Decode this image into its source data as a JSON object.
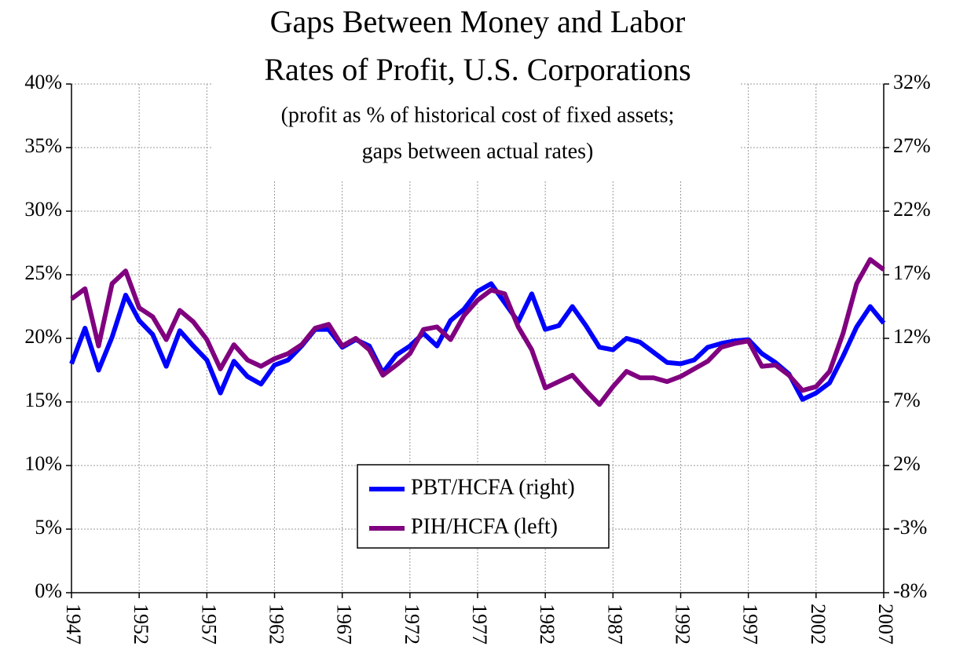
{
  "chart_data": {
    "type": "line",
    "title": [
      "Gaps Between Money and Labor",
      "Rates of Profit,  U.S. Corporations"
    ],
    "subtitle": [
      "(profit as % of historical cost of fixed assets;",
      "gaps between actual rates)"
    ],
    "x": [
      1947,
      1948,
      1949,
      1950,
      1951,
      1952,
      1953,
      1954,
      1955,
      1956,
      1957,
      1958,
      1959,
      1960,
      1961,
      1962,
      1963,
      1964,
      1965,
      1966,
      1967,
      1968,
      1969,
      1970,
      1971,
      1972,
      1973,
      1974,
      1975,
      1976,
      1977,
      1978,
      1979,
      1980,
      1981,
      1982,
      1983,
      1984,
      1985,
      1986,
      1987,
      1988,
      1989,
      1990,
      1991,
      1992,
      1993,
      1994,
      1995,
      1996,
      1997,
      1998,
      1999,
      2000,
      2001,
      2002,
      2003,
      2004,
      2005,
      2006,
      2007
    ],
    "series": [
      {
        "name": "PBT/HCFA (right)",
        "color": "#0000ff",
        "axis": "y2",
        "values": [
          10.0,
          12.8,
          9.5,
          12.1,
          15.4,
          13.4,
          12.3,
          9.8,
          12.6,
          11.4,
          10.3,
          7.7,
          10.2,
          9.0,
          8.4,
          9.9,
          10.3,
          11.4,
          12.7,
          12.7,
          11.3,
          11.9,
          11.4,
          9.3,
          10.7,
          11.4,
          12.4,
          11.4,
          13.4,
          14.3,
          15.7,
          16.3,
          14.8,
          13.3,
          15.5,
          12.7,
          13.0,
          14.5,
          13.0,
          11.3,
          11.1,
          12.0,
          11.7,
          10.9,
          10.1,
          10.0,
          10.3,
          11.3,
          11.6,
          11.8,
          11.9,
          10.8,
          10.1,
          9.2,
          7.2,
          7.7,
          8.5,
          10.6,
          12.9,
          14.5,
          13.2
        ]
      },
      {
        "name": "PIH/HCFA (left)",
        "color": "#800080",
        "values": [
          23.1,
          23.9,
          19.4,
          24.3,
          25.3,
          22.4,
          21.7,
          19.9,
          22.2,
          21.3,
          19.9,
          17.6,
          19.5,
          18.3,
          17.8,
          18.4,
          18.8,
          19.5,
          20.8,
          21.1,
          19.4,
          20.0,
          19.1,
          17.1,
          17.9,
          18.8,
          20.7,
          20.9,
          19.9,
          21.8,
          23.0,
          23.8,
          23.5,
          20.9,
          19.1,
          16.1,
          16.6,
          17.1,
          15.9,
          14.8,
          16.2,
          17.4,
          16.9,
          16.9,
          16.6,
          17.0,
          17.6,
          18.2,
          19.3,
          19.6,
          19.8,
          17.8,
          17.9,
          17.1,
          15.9,
          16.2,
          17.4,
          20.4,
          24.3,
          26.2,
          25.4
        ]
      }
    ],
    "xlim": [
      1947,
      2007
    ],
    "xticks": [
      1947,
      1952,
      1957,
      1962,
      1967,
      1972,
      1977,
      1982,
      1987,
      1992,
      1997,
      2002,
      2007
    ],
    "ylim": [
      0,
      40
    ],
    "yticks": [
      {
        "value": 0,
        "label": "0%"
      },
      {
        "value": 5,
        "label": "5%"
      },
      {
        "value": 10,
        "label": "10%"
      },
      {
        "value": 15,
        "label": "15%"
      },
      {
        "value": 20,
        "label": "20%"
      },
      {
        "value": 25,
        "label": "25%"
      },
      {
        "value": 30,
        "label": "30%"
      },
      {
        "value": 35,
        "label": "35%"
      },
      {
        "value": 40,
        "label": "40%"
      }
    ],
    "y2lim": [
      -8,
      32
    ],
    "y2ticks": [
      {
        "value": -8,
        "label": "-8%"
      },
      {
        "value": -3,
        "label": "-3%"
      },
      {
        "value": 2,
        "label": "2%"
      },
      {
        "value": 7,
        "label": "7%"
      },
      {
        "value": 12,
        "label": "12%"
      },
      {
        "value": 17,
        "label": "17%"
      },
      {
        "value": 22,
        "label": "22%"
      },
      {
        "value": 27,
        "label": "27%"
      },
      {
        "value": 32,
        "label": "32%"
      }
    ],
    "grid": true,
    "legend": "lower center"
  }
}
